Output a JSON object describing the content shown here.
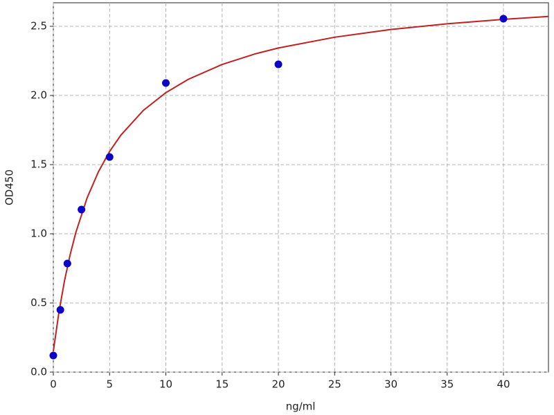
{
  "chart_data": {
    "type": "scatter",
    "xlabel": "ng/ml",
    "ylabel": "OD450",
    "xlim": [
      0,
      44
    ],
    "ylim": [
      0,
      2.67
    ],
    "xticks": [
      0,
      5,
      10,
      15,
      20,
      25,
      30,
      35,
      40
    ],
    "yticks": [
      {
        "value": 0,
        "label": "0.0"
      },
      0.5,
      {
        "value": 1,
        "label": "1.0"
      },
      1.5,
      {
        "value": 2,
        "label": "2.0"
      },
      2.5
    ],
    "grid": true,
    "series": [
      {
        "type": "scatter",
        "color": "#0a00c8",
        "x": [
          0,
          0.625,
          1.25,
          2.5,
          5,
          10,
          20,
          40
        ],
        "values": [
          0.12,
          0.45,
          0.785,
          1.175,
          1.555,
          2.09,
          2.225,
          2.555
        ]
      },
      {
        "type": "line",
        "color": "#c0211f",
        "x": [
          0,
          0.5,
          1,
          1.5,
          2,
          3,
          4,
          5,
          6,
          8,
          10,
          12,
          15,
          18,
          20,
          25,
          30,
          35,
          40,
          44
        ],
        "values": [
          0.15,
          0.434,
          0.663,
          0.851,
          1.009,
          1.259,
          1.447,
          1.595,
          1.713,
          1.892,
          2.02,
          2.117,
          2.224,
          2.302,
          2.343,
          2.421,
          2.477,
          2.518,
          2.55,
          2.571
        ]
      }
    ]
  }
}
